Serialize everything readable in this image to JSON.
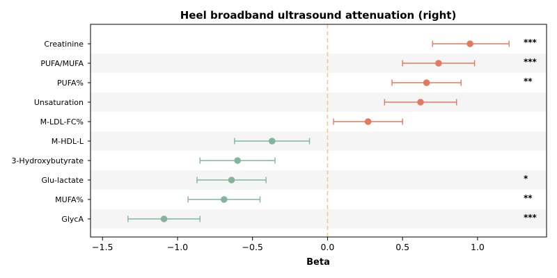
{
  "chart_data": {
    "type": "forest",
    "title": "Heel broadband ultrasound attenuation (right)",
    "xlabel": "Beta",
    "ylabel": "",
    "xlim": [
      -1.58,
      1.46
    ],
    "xticks": [
      -1.5,
      -1.0,
      -0.5,
      0.0,
      0.5,
      1.0
    ],
    "xtick_labels": [
      "−1.5",
      "−1.0",
      "−0.5",
      "0.0",
      "0.5",
      "1.0"
    ],
    "reference_line": 0.0,
    "grid": false,
    "colors": {
      "positive": "#e07b5f",
      "negative": "#82b59c",
      "reference": "#f5c98a",
      "band": "#f5f5f5"
    },
    "rows": [
      {
        "label": "Creatinine",
        "beta": 0.95,
        "low": 0.7,
        "high": 1.21,
        "sig": "***"
      },
      {
        "label": "PUFA/MUFA",
        "beta": 0.74,
        "low": 0.5,
        "high": 0.98,
        "sig": "***"
      },
      {
        "label": "PUFA%",
        "beta": 0.66,
        "low": 0.43,
        "high": 0.89,
        "sig": "**"
      },
      {
        "label": "Unsaturation",
        "beta": 0.62,
        "low": 0.38,
        "high": 0.86,
        "sig": ""
      },
      {
        "label": "M-LDL-FC%",
        "beta": 0.27,
        "low": 0.04,
        "high": 0.5,
        "sig": ""
      },
      {
        "label": "M-HDL-L",
        "beta": -0.37,
        "low": -0.62,
        "high": -0.12,
        "sig": ""
      },
      {
        "label": "3-Hydroxybutyrate",
        "beta": -0.6,
        "low": -0.85,
        "high": -0.35,
        "sig": ""
      },
      {
        "label": "Glu-lactate",
        "beta": -0.64,
        "low": -0.87,
        "high": -0.41,
        "sig": "*"
      },
      {
        "label": "MUFA%",
        "beta": -0.69,
        "low": -0.93,
        "high": -0.45,
        "sig": "**"
      },
      {
        "label": "GlycA",
        "beta": -1.09,
        "low": -1.33,
        "high": -0.85,
        "sig": "***"
      }
    ]
  }
}
